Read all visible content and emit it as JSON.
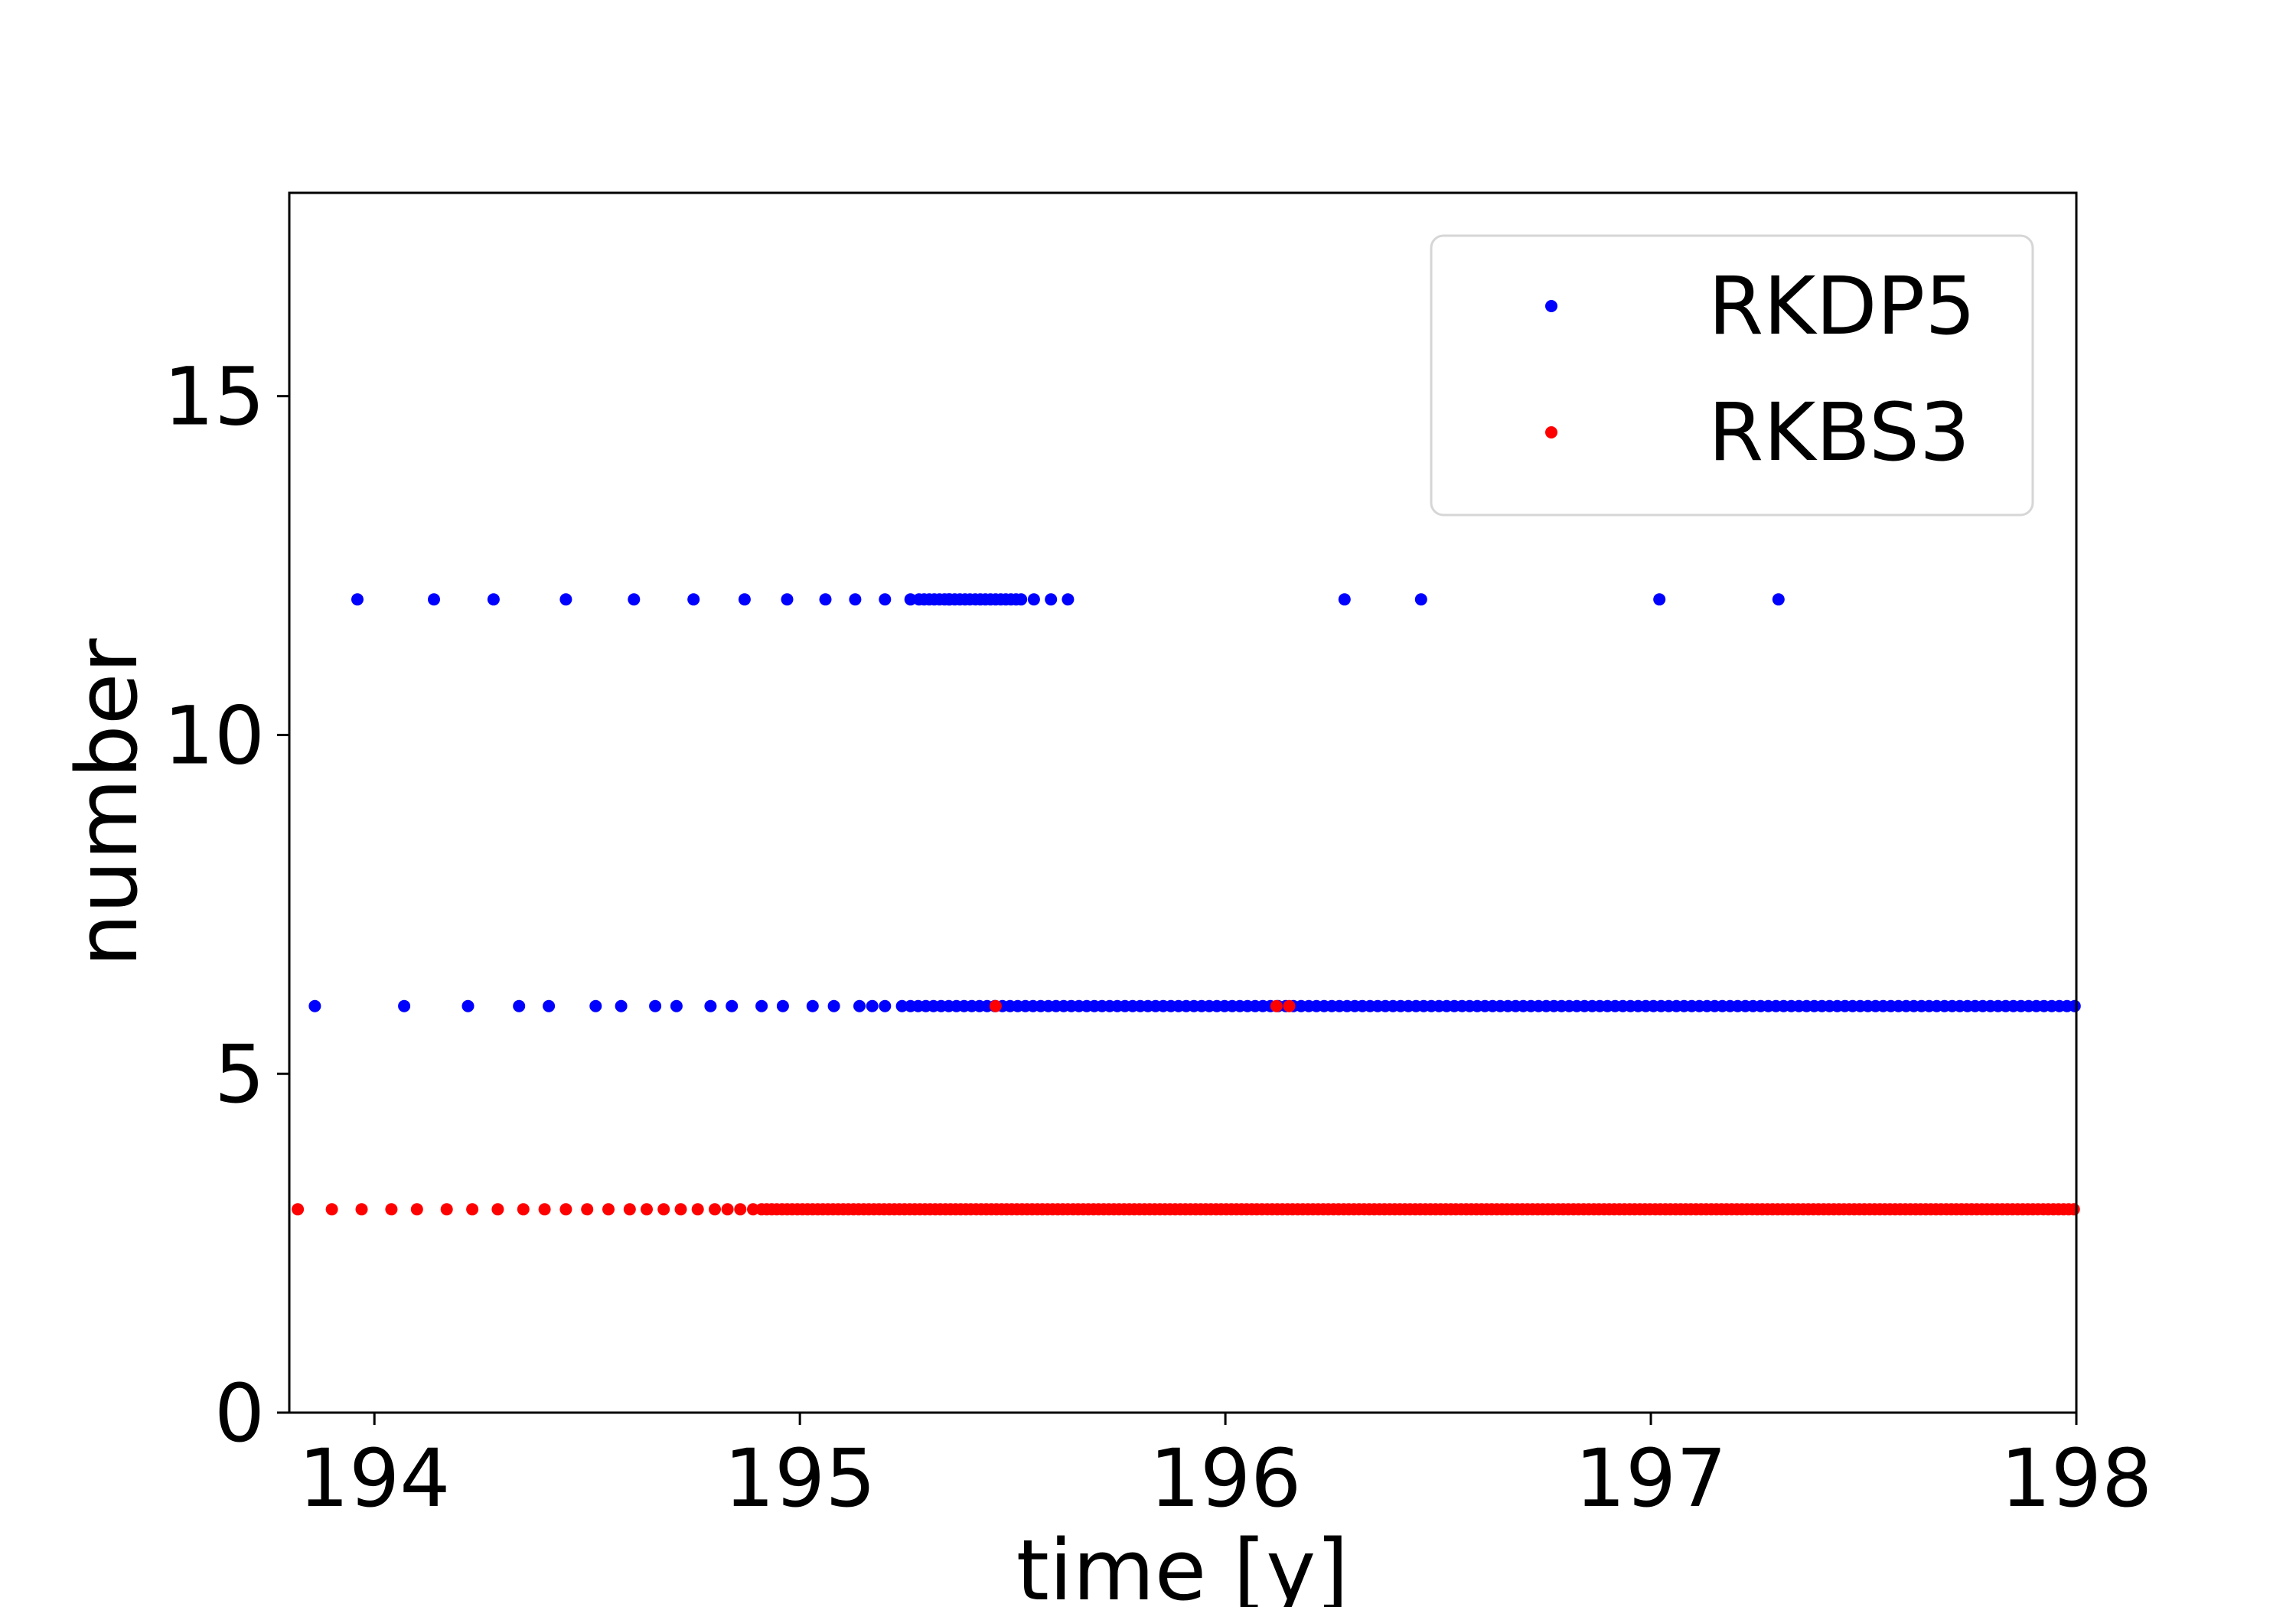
{
  "chart_data": {
    "type": "scatter",
    "title": "",
    "xlabel": "time [y]",
    "ylabel": "number",
    "xlim": [
      193.8,
      198.0
    ],
    "ylim": [
      0,
      18
    ],
    "xticks": [
      194,
      195,
      196,
      197,
      198
    ],
    "xtick_labels": [
      "194",
      "195",
      "196",
      "197",
      "198"
    ],
    "yticks": [
      0,
      5,
      10,
      15
    ],
    "ytick_labels": [
      "0",
      "5",
      "10",
      "15"
    ],
    "grid": false,
    "legend_position": "top-right",
    "series": [
      {
        "name": "RKDP5",
        "color": "#0000ff",
        "segments": [
          {
            "y": 12,
            "x": [
              193.96,
              194.14,
              194.28,
              194.45,
              194.61,
              194.75,
              194.87,
              194.97,
              195.06,
              195.13,
              195.2,
              195.26,
              195.35,
              195.55,
              195.59,
              195.63,
              196.28,
              196.46,
              197.02,
              197.3
            ]
          },
          {
            "y": 12,
            "range": [
              195.28,
              195.53
            ],
            "step": 0.012
          },
          {
            "y": 6,
            "x": [
              193.86,
              194.07,
              194.22,
              194.34,
              194.41,
              194.52,
              194.58,
              194.66,
              194.71,
              194.79,
              194.84,
              194.91,
              194.96,
              195.03,
              195.08,
              195.14,
              195.17,
              195.2,
              195.24
            ]
          },
          {
            "y": 6,
            "range": [
              195.26,
              198.0
            ],
            "step": 0.018
          }
        ]
      },
      {
        "name": "RKBS3",
        "color": "#ff0000",
        "segments": [
          {
            "y": 3,
            "x": [
              193.82,
              193.9,
              193.97,
              194.04,
              194.1,
              194.17,
              194.23,
              194.29,
              194.35,
              194.4,
              194.45,
              194.5,
              194.55,
              194.6,
              194.64,
              194.68,
              194.72,
              194.76,
              194.8,
              194.83,
              194.86,
              194.89
            ]
          },
          {
            "y": 3,
            "range": [
              194.91,
              198.0
            ],
            "step": 0.012
          },
          {
            "y": 6,
            "x": [
              195.46,
              196.12,
              196.15
            ]
          }
        ]
      }
    ]
  }
}
